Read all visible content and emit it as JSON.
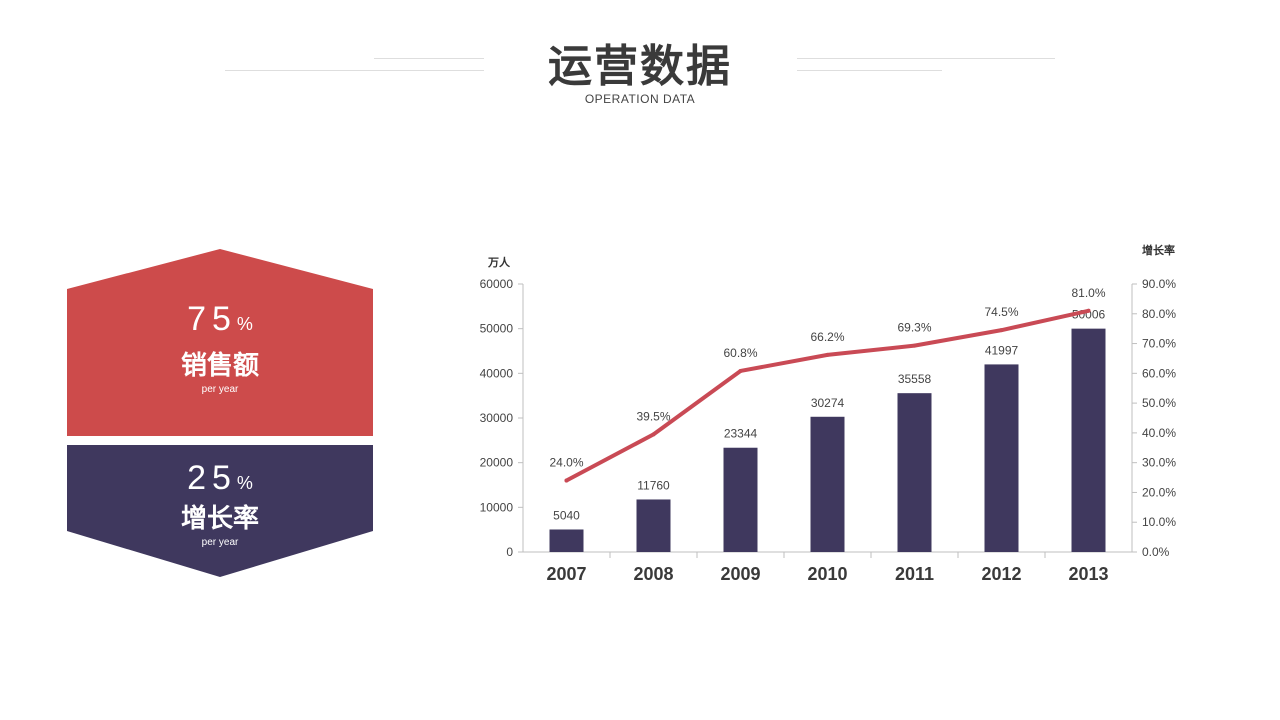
{
  "header": {
    "title": "运营数据",
    "subtitle": "OPERATION DATA"
  },
  "stats": [
    {
      "value": "75",
      "unit": "%",
      "label": "销售额",
      "sub": "per year",
      "color": "#cd4b4b"
    },
    {
      "value": "25",
      "unit": "%",
      "label": "增长率",
      "sub": "per year",
      "color": "#3f385e"
    }
  ],
  "chart_data": {
    "type": "bar",
    "categories": [
      "2007",
      "2008",
      "2009",
      "2010",
      "2011",
      "2012",
      "2013"
    ],
    "series": [
      {
        "values": [
          5040,
          11760,
          23344,
          30274,
          35558,
          41997,
          50006
        ],
        "color": "#3f385e",
        "axis": "left",
        "type": "bar"
      },
      {
        "values": [
          24.0,
          39.5,
          60.8,
          66.2,
          69.3,
          74.5,
          81.0
        ],
        "color": "#c94a55",
        "axis": "right",
        "type": "line"
      }
    ],
    "bar_labels": [
      "5040",
      "11760",
      "23344",
      "30274",
      "35558",
      "41997",
      "50006"
    ],
    "line_labels": [
      "24.0%",
      "39.5%",
      "60.8%",
      "66.2%",
      "69.3%",
      "74.5%",
      "81.0%"
    ],
    "ylabel": "万人",
    "y2label": "增长率",
    "ylim": [
      0,
      60000
    ],
    "y2lim": [
      0,
      90
    ],
    "yticks": [
      "0",
      "10000",
      "20000",
      "30000",
      "40000",
      "50000",
      "60000"
    ],
    "y2ticks": [
      "0.0%",
      "10.0%",
      "20.0%",
      "30.0%",
      "40.0%",
      "50.0%",
      "60.0%",
      "70.0%",
      "80.0%",
      "90.0%"
    ],
    "grid": false
  }
}
